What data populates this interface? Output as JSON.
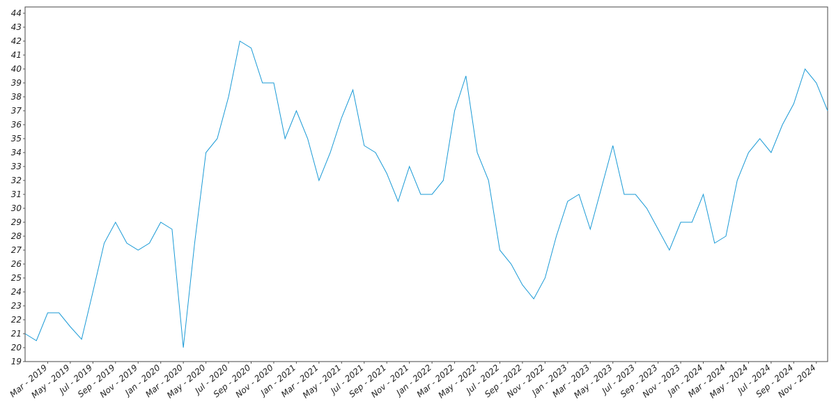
{
  "chart_data": {
    "type": "line",
    "x": [
      "2019-01",
      "2019-02",
      "2019-03",
      "2019-04",
      "2019-05",
      "2019-06",
      "2019-07",
      "2019-08",
      "2019-09",
      "2019-10",
      "2019-11",
      "2019-12",
      "2020-01",
      "2020-02",
      "2020-03",
      "2020-04",
      "2020-05",
      "2020-06",
      "2020-07",
      "2020-08",
      "2020-09",
      "2020-10",
      "2020-11",
      "2020-12",
      "2021-01",
      "2021-02",
      "2021-03",
      "2021-04",
      "2021-05",
      "2021-06",
      "2021-07",
      "2021-08",
      "2021-09",
      "2021-10",
      "2021-11",
      "2021-12",
      "2022-01",
      "2022-02",
      "2022-03",
      "2022-04",
      "2022-05",
      "2022-06",
      "2022-07",
      "2022-08",
      "2022-09",
      "2022-10",
      "2022-11",
      "2022-12",
      "2023-01",
      "2023-02",
      "2023-03",
      "2023-04",
      "2023-05",
      "2023-06",
      "2023-07",
      "2023-08",
      "2023-09",
      "2023-10",
      "2023-11",
      "2023-12",
      "2024-01",
      "2024-02",
      "2024-03",
      "2024-04",
      "2024-05",
      "2024-06",
      "2024-07",
      "2024-08",
      "2024-09",
      "2024-10",
      "2024-11",
      "2024-12"
    ],
    "series": [
      {
        "color": "#1a9ad6",
        "values": [
          21,
          20.5,
          22.5,
          22.5,
          21.5,
          20.6,
          24,
          27.5,
          29,
          27.5,
          27,
          27.5,
          29,
          28.5,
          20,
          27.5,
          34,
          35,
          38,
          42,
          41.5,
          39,
          39,
          35,
          37,
          35,
          32,
          34,
          36.5,
          38.5,
          34.5,
          34,
          32.5,
          30.5,
          33,
          31,
          31,
          32,
          37,
          39.5,
          34,
          32,
          27,
          26,
          24.5,
          23.5,
          25,
          28,
          30.5,
          31,
          28.5,
          31.5,
          34.5,
          31,
          31,
          30,
          28.5,
          27,
          29,
          29,
          31,
          27.5,
          28,
          32,
          34,
          35,
          34,
          36,
          37.5,
          40,
          39,
          37
        ]
      }
    ],
    "xlim": [
      "2019-01",
      "2024-12"
    ],
    "xticks": [
      {
        "value": "2019-03",
        "label": "Mar - 2019"
      },
      {
        "value": "2019-05",
        "label": "May - 2019"
      },
      {
        "value": "2019-07",
        "label": "Jul - 2019"
      },
      {
        "value": "2019-09",
        "label": "Sep - 2019"
      },
      {
        "value": "2019-11",
        "label": "Nov - 2019"
      },
      {
        "value": "2020-01",
        "label": "Jan - 2020"
      },
      {
        "value": "2020-03",
        "label": "Mar - 2020"
      },
      {
        "value": "2020-05",
        "label": "May - 2020"
      },
      {
        "value": "2020-07",
        "label": "Jul - 2020"
      },
      {
        "value": "2020-09",
        "label": "Sep - 2020"
      },
      {
        "value": "2020-11",
        "label": "Nov - 2020"
      },
      {
        "value": "2021-01",
        "label": "Jan - 2021"
      },
      {
        "value": "2021-03",
        "label": "Mar - 2021"
      },
      {
        "value": "2021-05",
        "label": "May - 2021"
      },
      {
        "value": "2021-07",
        "label": "Jul - 2021"
      },
      {
        "value": "2021-09",
        "label": "Sep - 2021"
      },
      {
        "value": "2021-11",
        "label": "Nov - 2021"
      },
      {
        "value": "2022-01",
        "label": "Jan - 2022"
      },
      {
        "value": "2022-03",
        "label": "Mar - 2022"
      },
      {
        "value": "2022-05",
        "label": "May - 2022"
      },
      {
        "value": "2022-07",
        "label": "Jul - 2022"
      },
      {
        "value": "2022-09",
        "label": "Sep - 2022"
      },
      {
        "value": "2022-11",
        "label": "Nov - 2022"
      },
      {
        "value": "2023-01",
        "label": "Jan - 2023"
      },
      {
        "value": "2023-03",
        "label": "Mar - 2023"
      },
      {
        "value": "2023-05",
        "label": "May - 2023"
      },
      {
        "value": "2023-07",
        "label": "Jul - 2023"
      },
      {
        "value": "2023-09",
        "label": "Sep - 2023"
      },
      {
        "value": "2023-11",
        "label": "Nov - 2023"
      },
      {
        "value": "2024-01",
        "label": "Jan - 2024"
      },
      {
        "value": "2024-03",
        "label": "Mar - 2024"
      },
      {
        "value": "2024-05",
        "label": "May - 2024"
      },
      {
        "value": "2024-07",
        "label": "Jul - 2024"
      },
      {
        "value": "2024-09",
        "label": "Sep - 2024"
      },
      {
        "value": "2024-11",
        "label": "Nov - 2024"
      }
    ],
    "ylim": [
      19,
      44.45
    ],
    "yticks": [
      19,
      20,
      21,
      22,
      23,
      24,
      25,
      26,
      27,
      28,
      29,
      30,
      31,
      32,
      33,
      34,
      35,
      36,
      37,
      38,
      39,
      40,
      41,
      42,
      43,
      44
    ],
    "grid": false
  }
}
